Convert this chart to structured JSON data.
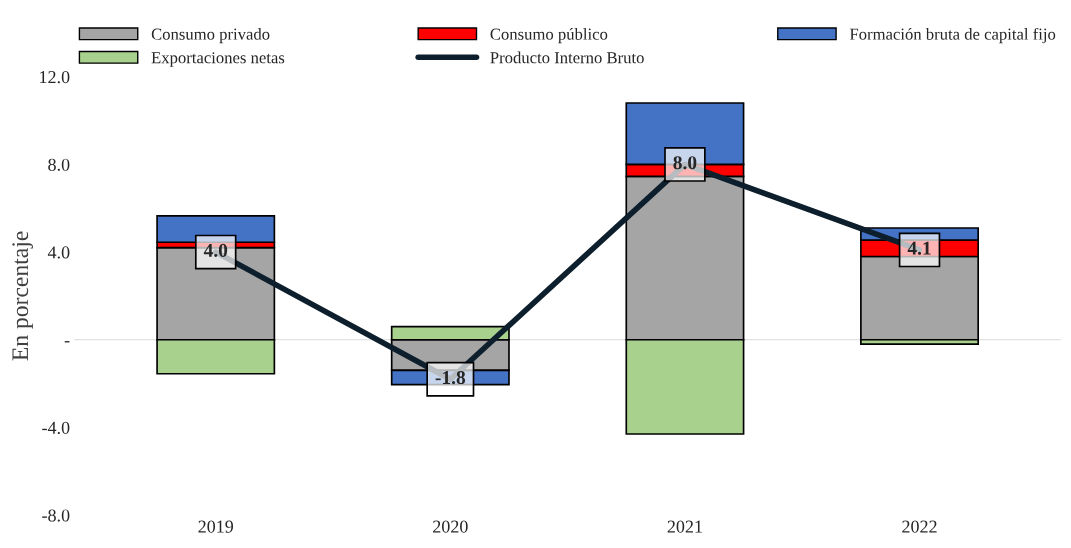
{
  "chart_data": {
    "type": "bar",
    "stacked": true,
    "ylabel": "En porcentaje",
    "categories": [
      "2019",
      "2020",
      "2021",
      "2022"
    ],
    "series": [
      {
        "name": "Consumo privado",
        "color": "#a5a5a5",
        "values": [
          4.2,
          -1.4,
          7.45,
          3.8
        ]
      },
      {
        "name": "Consumo público",
        "color": "#ff0000",
        "values": [
          0.25,
          null,
          0.55,
          0.75
        ]
      },
      {
        "name": "Formación bruta de capital fijo",
        "color": "#4472c4",
        "values": [
          1.2,
          -0.65,
          2.8,
          0.55
        ]
      },
      {
        "name": "Exportaciones netas",
        "color": "#a9d18e",
        "values": [
          -1.55,
          0.6,
          -4.3,
          -0.2
        ]
      },
      {
        "name": "Producto Interno Bruto",
        "type": "line",
        "color": "#0d1f2d",
        "values": [
          4.0,
          -1.8,
          8.0,
          4.1
        ],
        "value_labels": [
          "4.0",
          "-1.8",
          "8.0",
          "4.1"
        ]
      }
    ],
    "ylim": [
      -8,
      12
    ],
    "yticks": [
      {
        "value": -8,
        "label": "-8.0"
      },
      {
        "value": -4,
        "label": "-4.0"
      },
      {
        "value": 0,
        "label": "-"
      },
      {
        "value": 4,
        "label": "4.0"
      },
      {
        "value": 8,
        "label": "8.0"
      },
      {
        "value": 12,
        "label": "12.0"
      }
    ],
    "legend": "top"
  }
}
